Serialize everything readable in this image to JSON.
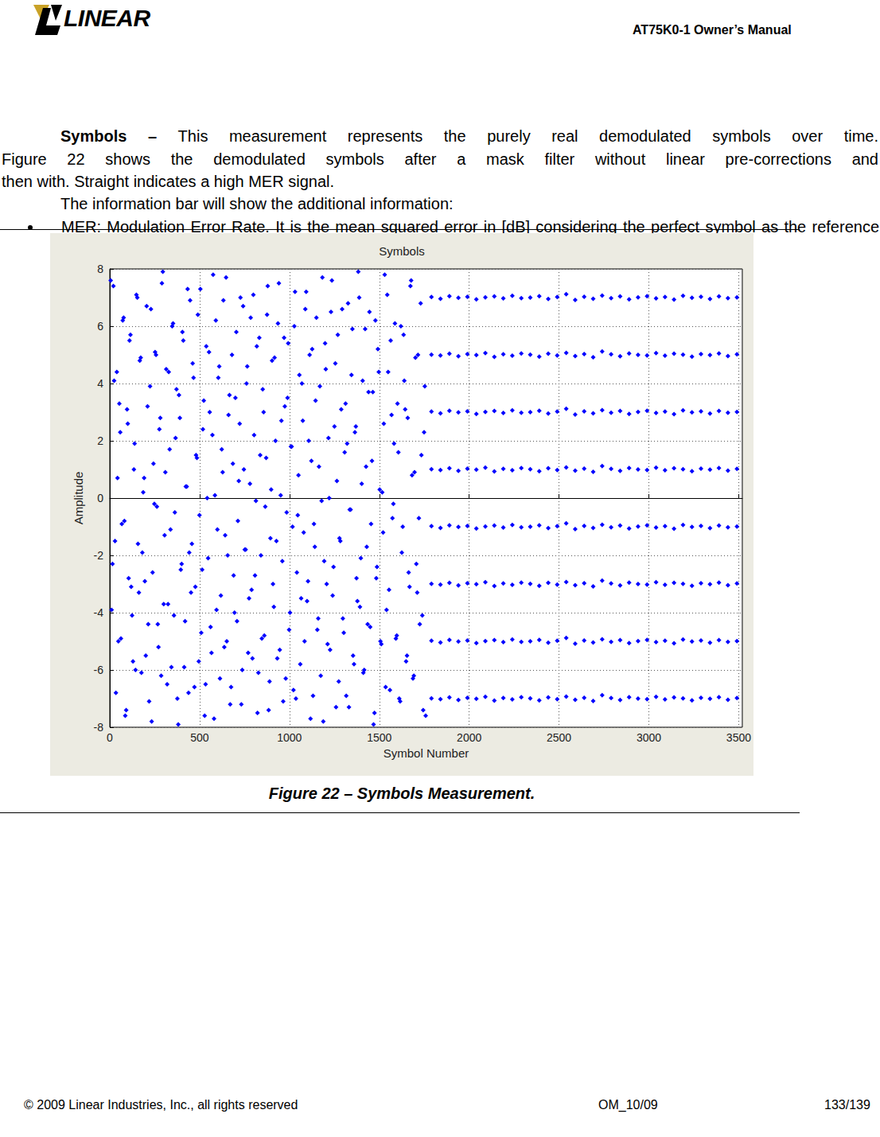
{
  "header": {
    "logo_text": "LINEAR",
    "title": "AT75K0-1 Owner’s Manual"
  },
  "body": {
    "lead": "Symbols – ",
    "lines": [
      "This measurement represents the purely real demodulated symbols over time.",
      "Figure 22 shows the demodulated symbols after a mask filter without linear pre-corrections and",
      "then with. Straight indicates a high MER signal."
    ],
    "info": "The information bar will show the additional information:",
    "bullets": [
      "MER: Modulation Error Rate. It is the mean squared error in [dB] considering the perfect symbol as the reference signal."
    ]
  },
  "chart_data": {
    "type": "scatter",
    "title": "Symbols",
    "xlabel": "Symbol Number",
    "ylabel": "Amplitude",
    "color": "#0000ff",
    "marker": "diamond",
    "grid": true,
    "xlim": [
      0,
      3520
    ],
    "xticks": [
      0,
      500,
      1000,
      1500,
      2000,
      2500,
      3000,
      3500
    ],
    "ylim": [
      -8,
      8
    ],
    "yticks": [
      -8,
      -6,
      -4,
      -2,
      0,
      2,
      4,
      6,
      8
    ],
    "x": [
      5,
      15,
      24,
      34,
      43,
      53,
      62,
      72,
      81,
      91,
      100,
      110,
      119,
      129,
      138,
      148,
      157,
      167,
      176,
      186,
      195,
      205,
      214,
      224,
      233,
      243,
      252,
      262,
      271,
      281,
      290,
      300,
      309,
      319,
      328,
      338,
      347,
      357,
      366,
      376,
      385,
      395,
      404,
      414,
      423,
      433,
      442,
      452,
      461,
      471,
      480,
      490,
      499,
      509,
      518,
      528,
      537,
      547,
      556,
      566,
      575,
      585,
      594,
      604,
      613,
      623,
      632,
      642,
      651,
      661,
      670,
      680,
      689,
      699,
      708,
      718,
      727,
      737,
      746,
      756,
      765,
      775,
      784,
      794,
      803,
      813,
      822,
      832,
      841,
      851,
      860,
      870,
      879,
      889,
      898,
      908,
      917,
      927,
      936,
      946,
      955,
      965,
      974,
      984,
      993,
      1003,
      1012,
      1022,
      1031,
      1041,
      1050,
      1060,
      1069,
      1079,
      1088,
      1098,
      1107,
      1117,
      1126,
      1136,
      1145,
      1155,
      1164,
      1174,
      1183,
      1193,
      1202,
      1212,
      1221,
      1231,
      1240,
      1250,
      1259,
      1269,
      1278,
      1288,
      1297,
      1307,
      1316,
      1326,
      1335,
      1345,
      1354,
      1364,
      1373,
      1383,
      1392,
      1402,
      1411,
      1421,
      1430,
      1440,
      1449,
      1459,
      1468,
      1478,
      1487,
      1497,
      1506,
      1516,
      1525,
      1535,
      1544,
      1554,
      1563,
      1573,
      1582,
      1592,
      1601,
      1611,
      1620,
      1630,
      1639,
      1649,
      1658,
      1668,
      1677,
      1687,
      1696,
      1706,
      1715,
      1725,
      1734,
      1744,
      1753,
      10,
      20,
      29,
      39,
      48,
      58,
      67,
      77,
      86,
      96,
      105,
      115,
      124,
      134,
      143,
      153,
      162,
      172,
      181,
      191,
      200,
      210,
      219,
      229,
      238,
      248,
      257,
      267,
      276,
      286,
      295,
      305,
      314,
      324,
      333,
      343,
      352,
      362,
      371,
      381,
      390,
      400,
      409,
      419,
      428,
      438,
      447,
      457,
      466,
      476,
      485,
      495,
      504,
      514,
      523,
      533,
      542,
      552,
      561,
      571,
      580,
      590,
      599,
      609,
      618,
      628,
      637,
      647,
      656,
      666,
      675,
      685,
      694,
      704,
      713,
      723,
      732,
      742,
      751,
      761,
      770,
      780,
      789,
      799,
      808,
      818,
      827,
      837,
      846,
      856,
      865,
      875,
      884,
      894,
      903,
      913,
      922,
      932,
      941,
      951,
      960,
      970,
      979,
      989,
      998,
      1008,
      1017,
      1027,
      1036,
      1046,
      1055,
      1065,
      1074,
      1084,
      1093,
      1103,
      1112,
      1122,
      1131,
      1141,
      1150,
      1160,
      1169,
      1179,
      1188,
      1198,
      1207,
      1217,
      1226,
      1236,
      1245,
      1255,
      1264,
      1274,
      1283,
      1293,
      1302,
      1312,
      1321,
      1331,
      1340,
      1350,
      1359,
      1369,
      1378,
      1388,
      1397,
      1407,
      1416,
      1426,
      1435,
      1445,
      1454,
      1464,
      1473,
      1483,
      1492,
      1502,
      1511,
      1521,
      1530,
      1540,
      1549,
      1559,
      1568,
      1578,
      1587,
      1597,
      1606,
      1616,
      1625,
      1635,
      1644,
      1654,
      1663,
      1673,
      1682,
      1692,
      1701,
      1711,
      1720,
      1730,
      1739,
      1749,
      1758,
      1790,
      1840,
      1890,
      1940,
      1990,
      2040,
      2090,
      2140,
      2190,
      2240,
      2290,
      2340,
      2390,
      2440,
      2490,
      2540,
      2590,
      2640,
      2690,
      2740,
      2790,
      2840,
      2890,
      2940,
      2990,
      3040,
      3090,
      3140,
      3190,
      3240,
      3290,
      3340,
      3390,
      3440,
      3490,
      1790,
      1840,
      1890,
      1940,
      1990,
      2040,
      2090,
      2140,
      2190,
      2240,
      2290,
      2340,
      2390,
      2440,
      2490,
      2540,
      2590,
      2640,
      2690,
      2740,
      2790,
      2840,
      2890,
      2940,
      2990,
      3040,
      3090,
      3140,
      3190,
      3240,
      3290,
      3340,
      3390,
      3440,
      3490,
      1790,
      1840,
      1890,
      1940,
      1990,
      2040,
      2090,
      2140,
      2190,
      2240,
      2290,
      2340,
      2390,
      2440,
      2490,
      2540,
      2590,
      2640,
      2690,
      2740,
      2790,
      2840,
      2890,
      2940,
      2990,
      3040,
      3090,
      3140,
      3190,
      3240,
      3290,
      3340,
      3390,
      3440,
      3490,
      1790,
      1840,
      1890,
      1940,
      1990,
      2040,
      2090,
      2140,
      2190,
      2240,
      2290,
      2340,
      2390,
      2440,
      2490,
      2540,
      2590,
      2640,
      2690,
      2740,
      2790,
      2840,
      2890,
      2940,
      2990,
      3040,
      3090,
      3140,
      3190,
      3240,
      3290,
      3340,
      3390,
      3440,
      3490,
      1790,
      1840,
      1890,
      1940,
      1990,
      2040,
      2090,
      2140,
      2190,
      2240,
      2290,
      2340,
      2390,
      2440,
      2490,
      2540,
      2590,
      2640,
      2690,
      2740,
      2790,
      2840,
      2890,
      2940,
      2990,
      3040,
      3090,
      3140,
      3190,
      3240,
      3290,
      3340,
      3390,
      3440,
      3490,
      1790,
      1840,
      1890,
      1940,
      1990,
      2040,
      2090,
      2140,
      2190,
      2240,
      2290,
      2340,
      2390,
      2440,
      2490,
      2540,
      2590,
      2640,
      2690,
      2740,
      2790,
      2840,
      2890,
      2940,
      2990,
      3040,
      3090,
      3140,
      3190,
      3240,
      3290,
      3340,
      3390,
      3440,
      3490,
      1790,
      1840,
      1890,
      1940,
      1990,
      2040,
      2090,
      2140,
      2190,
      2240,
      2290,
      2340,
      2390,
      2440,
      2490,
      2540,
      2590,
      2640,
      2690,
      2740,
      2790,
      2840,
      2890,
      2940,
      2990,
      3040,
      3090,
      3140,
      3190,
      3240,
      3290,
      3340,
      3390,
      3440,
      3490,
      1790,
      1840,
      1890,
      1940,
      1990,
      2040,
      2090,
      2140,
      2190,
      2240,
      2290,
      2340,
      2390,
      2440,
      2490,
      2540,
      2590,
      2640,
      2690,
      2740,
      2790,
      2840,
      2890,
      2940,
      2990,
      3040,
      3090,
      3140,
      3190,
      3240,
      3290,
      3340,
      3390,
      3440,
      3490
    ],
    "values": [
      7.6,
      -2.3,
      4.1,
      -6.8,
      0.7,
      3.3,
      -4.9,
      6.2,
      -0.8,
      -7.4,
      2.6,
      5.5,
      -3.1,
      -5.7,
      1.9,
      7.1,
      -1.6,
      4.8,
      -6.1,
      0.2,
      -2.9,
      6.7,
      -4.4,
      3.9,
      -7.8,
      1.2,
      5.1,
      -0.3,
      -5.2,
      2.8,
      7.5,
      -3.7,
      0.9,
      -6.5,
      4.4,
      -1.1,
      6.0,
      -4.1,
      2.1,
      -7.0,
      3.6,
      -2.5,
      5.8,
      -5.9,
      0.4,
      7.3,
      -1.9,
      -3.3,
      4.7,
      -6.6,
      1.5,
      6.4,
      -0.6,
      -4.7,
      2.4,
      -7.6,
      5.3,
      -2.1,
      3.0,
      -5.4,
      7.8,
      0.1,
      -3.9,
      4.2,
      -6.3,
      1.7,
      6.9,
      -1.3,
      -5.0,
      2.9,
      -7.2,
      5.0,
      -2.7,
      3.5,
      -4.3,
      0.6,
      7.0,
      -6.0,
      1.0,
      -1.8,
      4.6,
      -3.5,
      6.3,
      -5.6,
      2.2,
      -0.1,
      -7.5,
      5.6,
      -2.0,
      3.8,
      -4.8,
      1.4,
      7.4,
      -6.4,
      0.3,
      -3.0,
      4.9,
      -1.5,
      6.1,
      -5.3,
      2.7,
      -7.1,
      3.2,
      -0.5,
      5.4,
      -4.0,
      1.8,
      -6.7,
      7.2,
      -2.6,
      0.8,
      -5.8,
      4.0,
      -1.2,
      6.6,
      -3.6,
      2.0,
      -7.7,
      5.2,
      -0.9,
      3.4,
      -4.6,
      1.1,
      -6.2,
      7.7,
      -2.2,
      4.5,
      -5.1,
      0.0,
      6.5,
      -3.4,
      2.5,
      -7.3,
      5.7,
      -1.4,
      3.1,
      -4.2,
      1.6,
      -6.9,
      6.8,
      -0.4,
      4.3,
      -5.5,
      2.3,
      -2.8,
      7.9,
      -3.8,
      0.5,
      -6.1,
      5.9,
      -1.7,
      3.7,
      -4.5,
      1.3,
      -7.9,
      6.2,
      -2.4,
      4.4,
      -5.0,
      0.2,
      2.6,
      -6.6,
      7.1,
      -3.2,
      5.5,
      -0.7,
      1.9,
      -4.9,
      3.3,
      -7.0,
      6.0,
      -1.0,
      4.1,
      -5.7,
      2.8,
      -3.1,
      7.6,
      -6.3,
      0.9,
      -2.3,
      5.0,
      -4.4,
      1.5,
      -7.4,
      3.9,
      -3.9,
      7.4,
      -1.5,
      4.4,
      -5.0,
      2.3,
      -0.9,
      6.3,
      -7.6,
      3.1,
      -2.8,
      5.7,
      -4.1,
      1.0,
      -6.0,
      7.0,
      -3.3,
      4.9,
      -1.9,
      0.7,
      -5.5,
      3.2,
      -7.1,
      6.6,
      -2.6,
      -0.2,
      5.0,
      -4.4,
      2.4,
      -6.2,
      7.9,
      -1.3,
      4.5,
      -3.7,
      1.7,
      -5.9,
      6.1,
      -0.5,
      3.8,
      -7.9,
      2.8,
      -2.3,
      5.5,
      -4.3,
      0.4,
      -6.8,
      6.9,
      -1.6,
      4.2,
      -3.1,
      1.4,
      -5.7,
      7.3,
      -2.5,
      3.4,
      -6.5,
      0.0,
      5.1,
      -4.5,
      2.2,
      -7.7,
      6.2,
      -1.1,
      4.6,
      -3.4,
      0.9,
      -5.2,
      7.7,
      -2.0,
      3.6,
      -6.6,
      1.2,
      -4.0,
      5.8,
      -0.8,
      2.6,
      -7.2,
      6.7,
      -1.8,
      4.0,
      -5.4,
      0.5,
      -3.2,
      7.1,
      -2.7,
      5.3,
      -6.1,
      1.5,
      -4.9,
      3.0,
      -0.3,
      6.4,
      -7.4,
      -1.4,
      4.8,
      -3.8,
      2.0,
      -5.6,
      7.5,
      0.1,
      -2.2,
      5.6,
      -6.3,
      3.5,
      -4.6,
      1.8,
      -1.0,
      6.0,
      -7.0,
      -0.6,
      4.3,
      -3.5,
      2.7,
      -5.0,
      7.2,
      -2.9,
      5.0,
      1.3,
      -6.9,
      -1.7,
      6.3,
      -4.2,
      3.9,
      -0.1,
      -7.8,
      5.4,
      -3.0,
      2.1,
      -5.3,
      7.6,
      -2.4,
      4.7,
      0.6,
      -6.4,
      -1.5,
      6.6,
      -4.7,
      3.3,
      1.9,
      -7.3,
      -0.4,
      5.9,
      -5.8,
      2.5,
      -3.6,
      7.0,
      -2.1,
      4.1,
      -6.0,
      1.1,
      -4.4,
      6.5,
      -0.9,
      3.7,
      -7.5,
      -2.8,
      5.2,
      0.3,
      -5.1,
      -1.2,
      7.8,
      -3.9,
      4.4,
      -6.7,
      2.9,
      -0.2,
      6.1,
      -4.8,
      1.6,
      -7.1,
      -1.9,
      5.7,
      3.1,
      -5.5,
      -2.6,
      7.4,
      0.8,
      -6.2,
      4.9,
      -3.3,
      -0.7,
      6.8,
      -4.1,
      2.3,
      -7.6,
      7.02,
      6.96,
      7.05,
      6.99,
      7.03,
      6.94,
      7.01,
      7.04,
      6.97,
      7.06,
      6.98,
      7.0,
      7.05,
      6.95,
      7.02,
      7.12,
      6.92,
      7.03,
      6.96,
      7.07,
      6.98,
      7.04,
      6.94,
      7.01,
      7.05,
      6.97,
      7.02,
      6.93,
      7.06,
      6.99,
      7.03,
      6.95,
      7.04,
      6.98,
      7.01,
      5.01,
      4.98,
      5.04,
      4.95,
      5.03,
      4.99,
      5.06,
      4.93,
      5.02,
      4.97,
      5.05,
      5.01,
      4.94,
      5.04,
      4.98,
      5.07,
      4.96,
      5.03,
      4.92,
      5.12,
      5.02,
      4.95,
      5.05,
      5.0,
      4.98,
      5.06,
      4.97,
      5.04,
      5.01,
      4.94,
      5.03,
      4.99,
      5.05,
      4.96,
      5.02,
      3.02,
      2.96,
      3.05,
      2.99,
      3.03,
      2.94,
      3.01,
      3.04,
      2.97,
      3.06,
      2.98,
      3.0,
      3.05,
      2.95,
      3.02,
      3.12,
      2.92,
      3.03,
      2.96,
      3.07,
      2.98,
      3.04,
      2.94,
      3.01,
      3.05,
      2.97,
      3.02,
      2.93,
      3.06,
      2.99,
      3.03,
      2.95,
      3.04,
      2.98,
      3.01,
      1.01,
      0.98,
      1.04,
      0.95,
      1.03,
      0.99,
      1.06,
      0.93,
      1.02,
      0.97,
      1.05,
      1.01,
      0.94,
      1.04,
      0.98,
      1.07,
      0.96,
      1.03,
      0.92,
      1.12,
      1.02,
      0.95,
      1.05,
      1.0,
      0.98,
      1.06,
      0.97,
      1.04,
      1.01,
      0.94,
      1.03,
      0.99,
      1.05,
      0.96,
      1.02,
      -0.98,
      -1.04,
      -0.95,
      -1.01,
      -0.97,
      -1.06,
      -0.99,
      -0.96,
      -1.03,
      -0.94,
      -1.02,
      -1.0,
      -0.95,
      -1.05,
      -0.98,
      -0.88,
      -1.08,
      -0.97,
      -1.04,
      -0.93,
      -1.02,
      -0.96,
      -1.06,
      -0.99,
      -0.95,
      -1.03,
      -0.98,
      -1.07,
      -0.94,
      -1.01,
      -0.97,
      -1.05,
      -0.96,
      -1.02,
      -0.99,
      -2.99,
      -3.02,
      -2.96,
      -3.05,
      -2.97,
      -3.01,
      -2.94,
      -3.07,
      -2.98,
      -3.03,
      -2.95,
      -2.99,
      -3.06,
      -2.96,
      -3.02,
      -2.93,
      -3.04,
      -2.97,
      -3.08,
      -2.88,
      -2.98,
      -3.05,
      -2.95,
      -3.0,
      -3.02,
      -2.94,
      -3.03,
      -2.96,
      -2.99,
      -3.06,
      -2.97,
      -3.01,
      -2.95,
      -3.04,
      -2.98,
      -4.98,
      -5.04,
      -4.95,
      -5.01,
      -4.97,
      -5.06,
      -4.99,
      -4.96,
      -5.03,
      -4.94,
      -5.02,
      -5.0,
      -4.95,
      -5.05,
      -4.98,
      -4.88,
      -5.08,
      -4.97,
      -5.04,
      -4.93,
      -5.02,
      -4.96,
      -5.06,
      -4.99,
      -4.95,
      -5.03,
      -4.98,
      -5.07,
      -4.94,
      -5.01,
      -4.97,
      -5.05,
      -4.96,
      -5.02,
      -4.99,
      -6.99,
      -7.02,
      -6.96,
      -7.05,
      -6.97,
      -7.01,
      -6.94,
      -7.07,
      -6.98,
      -7.03,
      -6.95,
      -6.99,
      -7.06,
      -6.96,
      -7.02,
      -6.93,
      -7.04,
      -6.97,
      -7.08,
      -6.88,
      -6.98,
      -7.05,
      -6.95,
      -7.0,
      -7.02,
      -6.94,
      -7.03,
      -6.96,
      -6.99,
      -7.06,
      -6.97,
      -7.01,
      -6.95,
      -7.04,
      -6.98
    ]
  },
  "caption": "Figure 22 – Symbols Measurement.",
  "footer": {
    "copyright": "© 2009 Linear Industries, Inc., all rights reserved",
    "doc": "OM_10/09",
    "page": "133/139"
  }
}
